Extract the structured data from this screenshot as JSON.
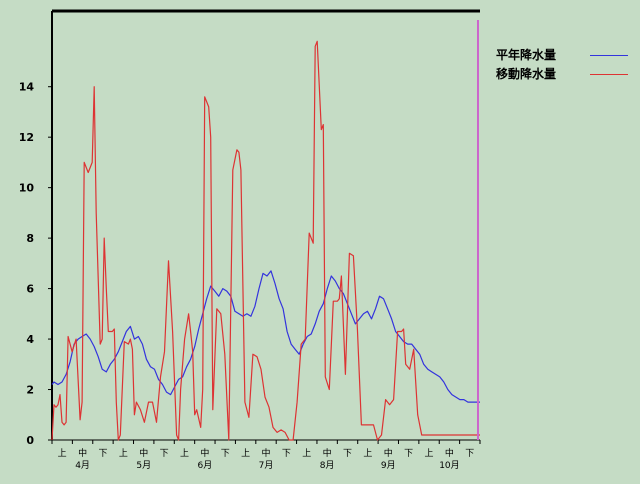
{
  "chart_data": {
    "type": "line",
    "title": "",
    "xlabel": "",
    "ylabel": "",
    "ylim": [
      0,
      17
    ],
    "y_ticks": [
      0,
      2,
      4,
      6,
      8,
      10,
      12,
      14
    ],
    "x_period_labels": [
      "上",
      "中",
      "下",
      "上",
      "中",
      "下",
      "上",
      "中",
      "下",
      "上",
      "中",
      "下",
      "上",
      "中",
      "下",
      "上",
      "中",
      "下",
      "上",
      "中",
      "下"
    ],
    "x_month_labels": [
      "4月",
      "5月",
      "6月",
      "7月",
      "8月",
      "9月",
      "10月"
    ],
    "x_range_days": [
      0,
      213
    ],
    "marker_day": 212,
    "grid": false,
    "legend_position": "top-right",
    "colors": {
      "background": "#c5dcc5",
      "axis": "#000000",
      "marker": "#cc66cc"
    },
    "series": [
      {
        "name": "平年降水量",
        "color": "#3333dd",
        "x": [
          0,
          1,
          3,
          5,
          7,
          9,
          11,
          13,
          15,
          17,
          19,
          21,
          23,
          25,
          27,
          29,
          31,
          33,
          35,
          37,
          39,
          41,
          43,
          45,
          47,
          49,
          51,
          53,
          55,
          57,
          59,
          61,
          63,
          65,
          67,
          69,
          71,
          73,
          75,
          77,
          79,
          81,
          83,
          85,
          87,
          89,
          91,
          93,
          95,
          97,
          99,
          101,
          103,
          105,
          107,
          109,
          111,
          113,
          115,
          117,
          119,
          121,
          123,
          125,
          127,
          129,
          131,
          133,
          135,
          137,
          139,
          141,
          143,
          145,
          147,
          149,
          151,
          153,
          155,
          157,
          159,
          161,
          163,
          165,
          167,
          169,
          171,
          173,
          175,
          177,
          179,
          181,
          183,
          185,
          187,
          189,
          191,
          193,
          195,
          197,
          199,
          201,
          203,
          205,
          207,
          209,
          211,
          213
        ],
        "values": [
          2.2,
          2.3,
          2.2,
          2.3,
          2.6,
          3.1,
          3.8,
          4.0,
          4.1,
          4.2,
          4.0,
          3.7,
          3.3,
          2.8,
          2.7,
          3.0,
          3.2,
          3.5,
          3.9,
          4.3,
          4.5,
          4.0,
          4.1,
          3.8,
          3.2,
          2.9,
          2.8,
          2.4,
          2.2,
          1.9,
          1.8,
          2.1,
          2.4,
          2.5,
          2.9,
          3.2,
          3.7,
          4.4,
          5.0,
          5.6,
          6.1,
          5.9,
          5.7,
          6.0,
          5.9,
          5.7,
          5.1,
          5.0,
          4.9,
          5.0,
          4.9,
          5.3,
          6.0,
          6.6,
          6.5,
          6.7,
          6.2,
          5.6,
          5.2,
          4.3,
          3.8,
          3.6,
          3.4,
          3.8,
          4.1,
          4.2,
          4.6,
          5.1,
          5.4,
          6.0,
          6.5,
          6.3,
          6.0,
          5.8,
          5.4,
          5.0,
          4.6,
          4.8,
          5.0,
          5.1,
          4.8,
          5.2,
          5.7,
          5.6,
          5.2,
          4.8,
          4.3,
          4.1,
          3.9,
          3.8,
          3.8,
          3.6,
          3.4,
          3.0,
          2.8,
          2.7,
          2.6,
          2.5,
          2.3,
          2.0,
          1.8,
          1.7,
          1.6,
          1.6,
          1.5,
          1.5,
          1.5,
          1.5
        ]
      },
      {
        "name": "移動降水量",
        "color": "#dd3333",
        "x": [
          0,
          1,
          2,
          3,
          4,
          5,
          6,
          7,
          8,
          10,
          12,
          14,
          15,
          16,
          18,
          20,
          21,
          22,
          24,
          25,
          26,
          27,
          28,
          30,
          31,
          32,
          33,
          34,
          36,
          38,
          39,
          40,
          41,
          42,
          44,
          46,
          48,
          50,
          52,
          54,
          56,
          58,
          60,
          62,
          63,
          64,
          66,
          68,
          69,
          70,
          71,
          72,
          74,
          75,
          76,
          78,
          79,
          80,
          82,
          84,
          86,
          88,
          90,
          92,
          93,
          94,
          96,
          98,
          100,
          102,
          104,
          106,
          108,
          110,
          112,
          114,
          116,
          118,
          120,
          122,
          124,
          126,
          128,
          130,
          131,
          132,
          134,
          135,
          136,
          138,
          140,
          142,
          143,
          144,
          146,
          148,
          150,
          152,
          154,
          156,
          158,
          160,
          162,
          164,
          166,
          168,
          170,
          172,
          174,
          175,
          176,
          178,
          180,
          182,
          184,
          186,
          188,
          190,
          192,
          194,
          196,
          198,
          200,
          202,
          204,
          206,
          208,
          210,
          212,
          213
        ],
        "values": [
          0,
          1.4,
          1.3,
          1.4,
          1.8,
          0.7,
          0.6,
          0.7,
          4.1,
          3.5,
          4.0,
          0.8,
          1.5,
          11.0,
          10.6,
          11.0,
          14.0,
          9.0,
          3.8,
          4.0,
          8.0,
          6.0,
          4.3,
          4.3,
          4.4,
          1.5,
          0,
          0.2,
          3.9,
          3.8,
          4.0,
          3.6,
          1.0,
          1.5,
          1.2,
          0.7,
          1.5,
          1.5,
          0.7,
          2.5,
          3.5,
          7.1,
          4.3,
          0.2,
          0,
          2.0,
          4.0,
          5.0,
          4.3,
          3.5,
          1.0,
          1.2,
          0.5,
          2.0,
          13.6,
          13.2,
          12.0,
          1.2,
          5.2,
          5.0,
          3.4,
          0,
          10.7,
          11.5,
          11.4,
          10.7,
          1.5,
          0.9,
          3.4,
          3.3,
          2.8,
          1.7,
          1.3,
          0.5,
          0.3,
          0.4,
          0.3,
          0,
          0,
          1.5,
          3.8,
          4.0,
          8.2,
          7.8,
          15.6,
          15.8,
          12.3,
          12.5,
          2.5,
          2.0,
          5.5,
          5.5,
          5.6,
          6.5,
          2.6,
          7.4,
          7.3,
          4.4,
          0.6,
          0.6,
          0.6,
          0.6,
          0,
          0.2,
          1.6,
          1.4,
          1.6,
          4.3,
          4.3,
          4.4,
          3.0,
          2.8,
          3.6,
          1.0,
          0.2,
          0.2,
          0.2,
          0.2,
          0.2,
          0.2,
          0.2,
          0.2,
          0.2,
          0.2,
          0.2,
          0.2,
          0.2,
          0.2,
          0.2,
          0.2
        ]
      }
    ]
  }
}
